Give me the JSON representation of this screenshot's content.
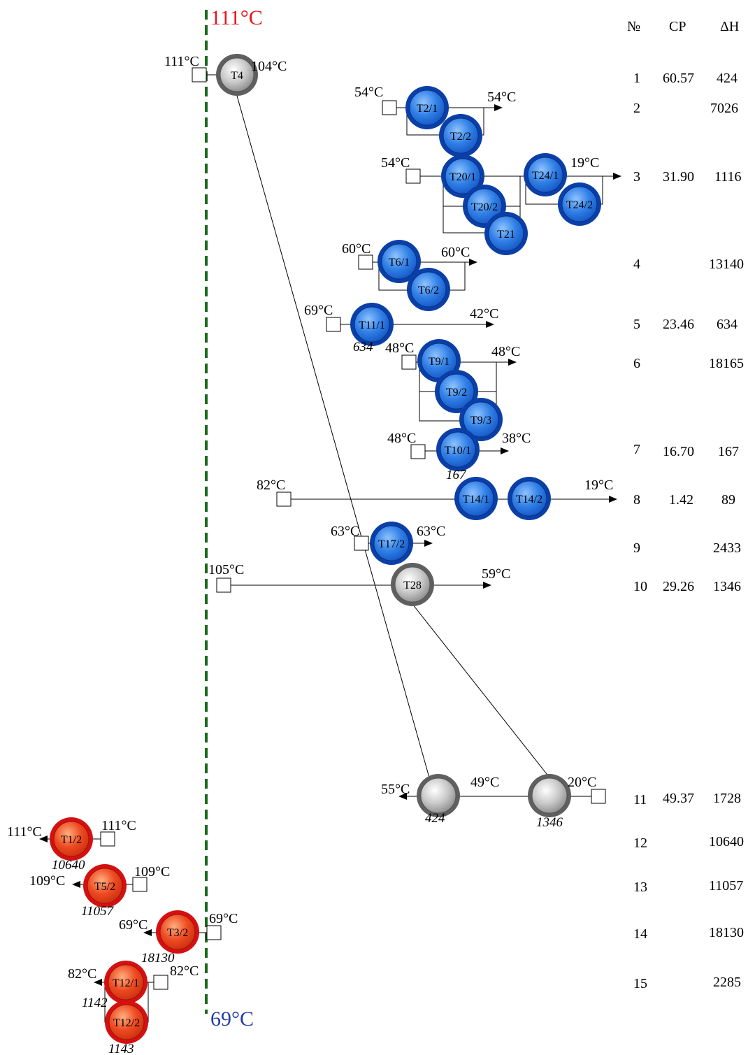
{
  "pinch": {
    "top_label": "111°C",
    "bottom_label": "69°C",
    "top_color": "#e8141c",
    "bottom_color": "#1f3fa8",
    "line_color": "#1a6b1a"
  },
  "colors": {
    "cold_fill": "#2f7fe6",
    "cold_ring": "#0a3fa8",
    "hot_fill": "#ee4a22",
    "hot_ring": "#d41010",
    "gray_fill": "#9a9a9a",
    "gray_ring": "#5f5f5f"
  },
  "table": {
    "headers": [
      "№",
      "CP",
      "ΔH"
    ],
    "rows": [
      {
        "no": "1",
        "cp": "60.57",
        "dh": "424"
      },
      {
        "no": "2",
        "cp": "",
        "dh": "7026"
      },
      {
        "no": "3",
        "cp": "31.90",
        "dh": "1116"
      },
      {
        "no": "4",
        "cp": "",
        "dh": "13140"
      },
      {
        "no": "5",
        "cp": "23.46",
        "dh": "634"
      },
      {
        "no": "6",
        "cp": "",
        "dh": "18165"
      },
      {
        "no": "7",
        "cp": "16.70",
        "dh": "167"
      },
      {
        "no": "8",
        "cp": "1.42",
        "dh": "89"
      },
      {
        "no": "9",
        "cp": "",
        "dh": "2433"
      },
      {
        "no": "10",
        "cp": "29.26",
        "dh": "1346"
      },
      {
        "no": "11",
        "cp": "49.37",
        "dh": "1728"
      },
      {
        "no": "12",
        "cp": "",
        "dh": "10640"
      },
      {
        "no": "13",
        "cp": "",
        "dh": "11057"
      },
      {
        "no": "14",
        "cp": "",
        "dh": "18130"
      },
      {
        "no": "15",
        "cp": "",
        "dh": "2285"
      }
    ]
  },
  "units": [
    {
      "id": "T4",
      "label": "T4",
      "kind": "gray"
    },
    {
      "id": "T2/1",
      "label": "T2/1",
      "kind": "cold"
    },
    {
      "id": "T2/2",
      "label": "T2/2",
      "kind": "cold"
    },
    {
      "id": "T20/1",
      "label": "T20/1",
      "kind": "cold"
    },
    {
      "id": "T20/2",
      "label": "T20/2",
      "kind": "cold"
    },
    {
      "id": "T21",
      "label": "T21",
      "kind": "cold"
    },
    {
      "id": "T24/1",
      "label": "T24/1",
      "kind": "cold"
    },
    {
      "id": "T24/2",
      "label": "T24/2",
      "kind": "cold"
    },
    {
      "id": "T6/1",
      "label": "T6/1",
      "kind": "cold"
    },
    {
      "id": "T6/2",
      "label": "T6/2",
      "kind": "cold"
    },
    {
      "id": "T11/1",
      "label": "T11/1",
      "kind": "cold"
    },
    {
      "id": "T9/1",
      "label": "T9/1",
      "kind": "cold"
    },
    {
      "id": "T9/2",
      "label": "T9/2",
      "kind": "cold"
    },
    {
      "id": "T9/3",
      "label": "T9/3",
      "kind": "cold"
    },
    {
      "id": "T10/1",
      "label": "T10/1",
      "kind": "cold"
    },
    {
      "id": "T14/1",
      "label": "T14/1",
      "kind": "cold"
    },
    {
      "id": "T14/2",
      "label": "T14/2",
      "kind": "cold"
    },
    {
      "id": "T17/2",
      "label": "T17/2",
      "kind": "cold"
    },
    {
      "id": "T28",
      "label": "T28",
      "kind": "gray"
    },
    {
      "id": "HX1",
      "label": "",
      "kind": "gray"
    },
    {
      "id": "HX2",
      "label": "",
      "kind": "gray"
    },
    {
      "id": "T1/2",
      "label": "T1/2",
      "kind": "hot"
    },
    {
      "id": "T5/2",
      "label": "T5/2",
      "kind": "hot"
    },
    {
      "id": "T3/2",
      "label": "T3/2",
      "kind": "hot"
    },
    {
      "id": "T12/1",
      "label": "T12/1",
      "kind": "hot"
    },
    {
      "id": "T12/2",
      "label": "T12/2",
      "kind": "hot"
    }
  ],
  "temps": [
    "111°C",
    "104°C",
    "54°C",
    "54°C",
    "54°C",
    "19°C",
    "60°C",
    "60°C",
    "69°C",
    "42°C",
    "48°C",
    "48°C",
    "48°C",
    "38°C",
    "82°C",
    "19°C",
    "63°C",
    "63°C",
    "105°C",
    "59°C",
    "55°C",
    "49°C",
    "20°C",
    "111°C",
    "111°C",
    "109°C",
    "109°C",
    "69°C",
    "69°C",
    "82°C",
    "82°C"
  ],
  "duties": [
    "634",
    "167",
    "424",
    "1346",
    "10640",
    "11057",
    "18130",
    "1142",
    "1143"
  ]
}
